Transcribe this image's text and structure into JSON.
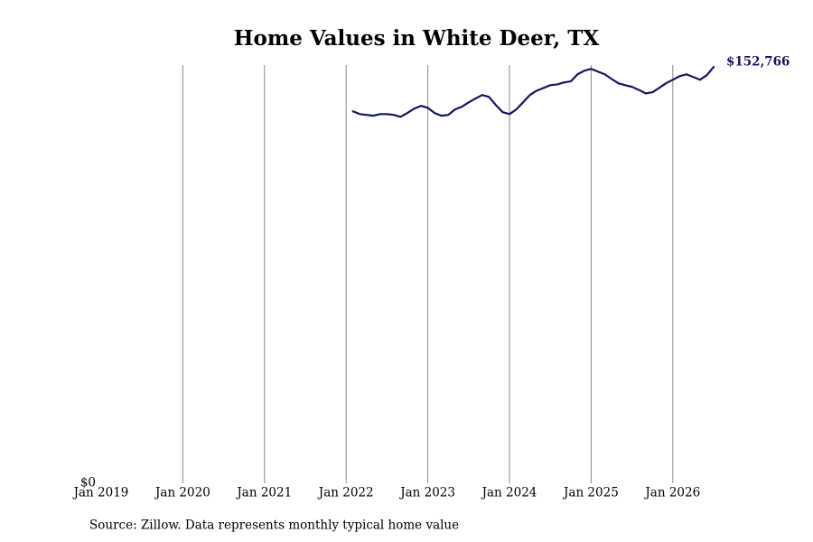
{
  "chart_data": {
    "type": "line",
    "title": "Home Values in White Deer, TX",
    "source": "Source: Zillow. Data represents monthly typical home value",
    "x": [
      "2022-02",
      "2022-03",
      "2022-04",
      "2022-05",
      "2022-06",
      "2022-07",
      "2022-08",
      "2022-09",
      "2022-10",
      "2022-11",
      "2022-12",
      "2023-01",
      "2023-02",
      "2023-03",
      "2023-04",
      "2023-05",
      "2023-06",
      "2023-07",
      "2023-08",
      "2023-09",
      "2023-10",
      "2023-11",
      "2023-12",
      "2024-01",
      "2024-02",
      "2024-03",
      "2024-04",
      "2024-05",
      "2024-06",
      "2024-07",
      "2024-08",
      "2024-09",
      "2024-10",
      "2024-11",
      "2024-12",
      "2025-01",
      "2025-02",
      "2025-03",
      "2025-04",
      "2025-05",
      "2025-06",
      "2025-07",
      "2025-08",
      "2025-09",
      "2025-10",
      "2025-11",
      "2025-12",
      "2026-01",
      "2026-02",
      "2026-03",
      "2026-04",
      "2026-05",
      "2026-06",
      "2026-07"
    ],
    "series": [
      {
        "name": "Typical home value",
        "color": "#15155e",
        "values": [
          136500,
          135500,
          135200,
          134900,
          135500,
          135500,
          135200,
          134500,
          135900,
          137500,
          138500,
          137800,
          135900,
          134900,
          135200,
          137200,
          138200,
          139800,
          141200,
          142500,
          141800,
          138800,
          136200,
          135500,
          137200,
          139800,
          142500,
          144100,
          145100,
          146100,
          146400,
          147100,
          147500,
          150100,
          151400,
          152100,
          151100,
          150100,
          148400,
          146800,
          146100,
          145500,
          144400,
          143100,
          143500,
          145100,
          146800,
          148100,
          149400,
          150100,
          149100,
          148100,
          149800,
          152766
        ],
        "value_labels": [
          null,
          null,
          null,
          null,
          null,
          null,
          null,
          null,
          null,
          null,
          null,
          null,
          null,
          null,
          null,
          null,
          null,
          null,
          null,
          null,
          null,
          null,
          null,
          null,
          null,
          null,
          null,
          null,
          null,
          null,
          null,
          null,
          null,
          null,
          null,
          null,
          null,
          null,
          null,
          null,
          null,
          null,
          null,
          null,
          null,
          null,
          null,
          null,
          null,
          null,
          null,
          null,
          null,
          "$152,766"
        ]
      }
    ],
    "xlim": [
      "2019-01",
      "2026-07"
    ],
    "xticks": [
      {
        "value": "2019-01",
        "label": "Jan 2019"
      },
      {
        "value": "2020-01",
        "label": "Jan 2020"
      },
      {
        "value": "2021-01",
        "label": "Jan 2021"
      },
      {
        "value": "2022-01",
        "label": "Jan 2022"
      },
      {
        "value": "2023-01",
        "label": "Jan 2023"
      },
      {
        "value": "2024-01",
        "label": "Jan 2024"
      },
      {
        "value": "2025-01",
        "label": "Jan 2025"
      },
      {
        "value": "2026-01",
        "label": "Jan 2026"
      }
    ],
    "ylim": [
      0,
      153500
    ],
    "yticks": [
      {
        "value": 0,
        "label": "$0"
      }
    ],
    "grid": "x"
  }
}
